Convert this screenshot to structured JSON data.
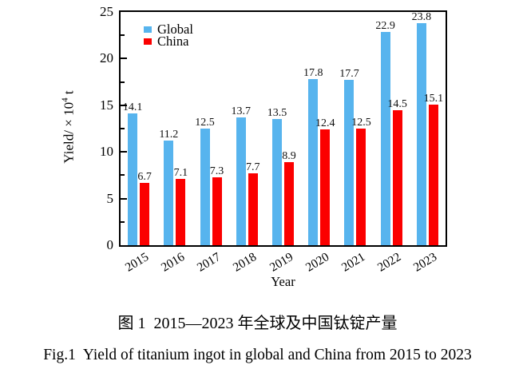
{
  "chart_data": {
    "type": "bar",
    "categories": [
      "2015",
      "2016",
      "2017",
      "2018",
      "2019",
      "2020",
      "2021",
      "2022",
      "2023"
    ],
    "series": [
      {
        "name": "Global",
        "color": "#57B4EE",
        "values": [
          14.1,
          11.2,
          12.5,
          13.7,
          13.5,
          17.8,
          17.7,
          22.9,
          23.8
        ]
      },
      {
        "name": "China",
        "color": "#FB0000",
        "values": [
          6.7,
          7.1,
          7.3,
          7.7,
          8.9,
          12.4,
          12.5,
          14.5,
          15.1
        ]
      }
    ],
    "xlabel": "Year",
    "ylabel": {
      "prefix": "Yield/ × 10",
      "sup": "4",
      "suffix": " t"
    },
    "ylim": [
      0,
      25
    ],
    "yticks": [
      0,
      5,
      10,
      15,
      20,
      25
    ],
    "yminor": [
      2.5,
      7.5,
      12.5,
      17.5,
      22.5
    ],
    "legend_position": "top-left-inside",
    "grid": false,
    "frame_color": "#000000"
  },
  "captions": {
    "chinese": "图 1  2015—2023 年全球及中国钛锭产量",
    "english": "Fig.1  Yield of titanium ingot in global and China from 2015 to 2023"
  }
}
